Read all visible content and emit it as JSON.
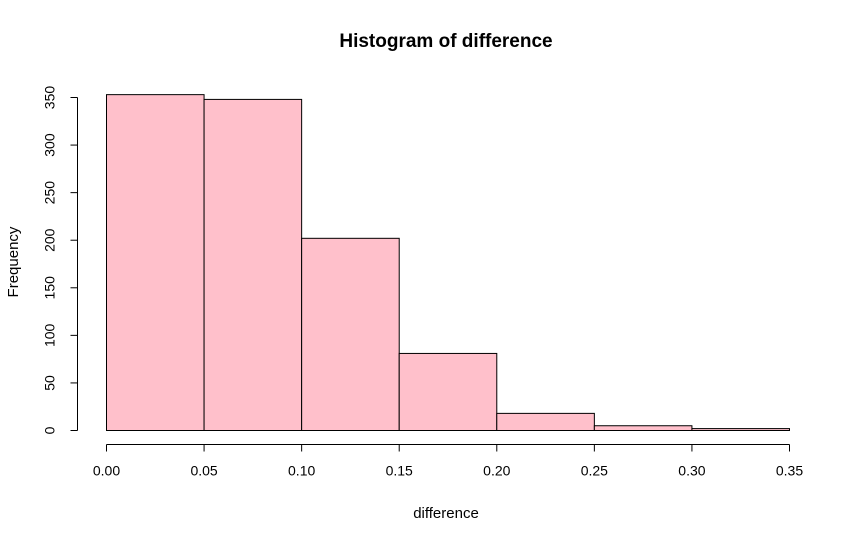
{
  "chart_data": {
    "type": "bar",
    "title": "Histogram of difference",
    "xlabel": "difference",
    "ylabel": "Frequency",
    "bins": [
      {
        "start": 0.0,
        "end": 0.05,
        "count": 353
      },
      {
        "start": 0.05,
        "end": 0.1,
        "count": 348
      },
      {
        "start": 0.1,
        "end": 0.15,
        "count": 202
      },
      {
        "start": 0.15,
        "end": 0.2,
        "count": 81
      },
      {
        "start": 0.2,
        "end": 0.25,
        "count": 18
      },
      {
        "start": 0.25,
        "end": 0.3,
        "count": 5
      },
      {
        "start": 0.3,
        "end": 0.35,
        "count": 2
      }
    ],
    "xlim": [
      0,
      0.35
    ],
    "ylim": [
      0,
      350
    ],
    "x_ticks": [
      "0.00",
      "0.05",
      "0.10",
      "0.15",
      "0.20",
      "0.25",
      "0.30",
      "0.35"
    ],
    "y_ticks": [
      "0",
      "50",
      "100",
      "150",
      "200",
      "250",
      "300",
      "350"
    ],
    "bar_color": "#ffc0cb",
    "grid": false,
    "legend": "none"
  }
}
